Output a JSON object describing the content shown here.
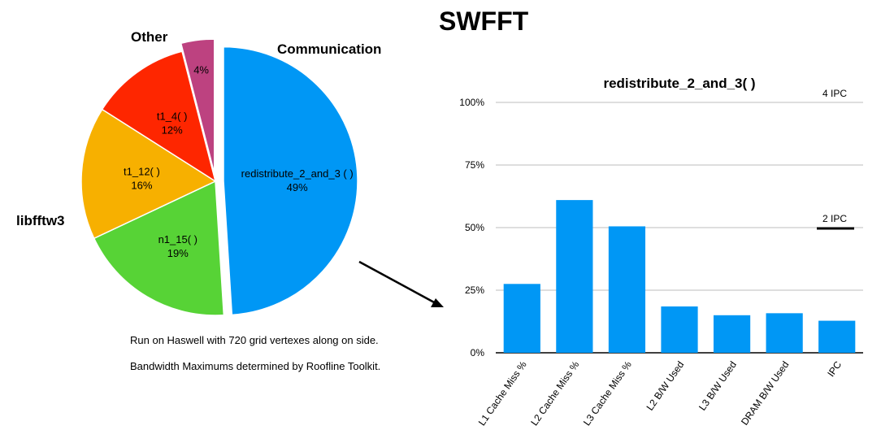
{
  "title": "SWFFT",
  "pie": {
    "group_labels": {
      "other": "Other",
      "communication": "Communication",
      "libfftw3": "libfftw3"
    },
    "notes": [
      "Run on Haswell with 720 grid vertexes along on side.",
      "Bandwidth Maximums determined by Roofline Toolkit."
    ]
  },
  "chart_data": [
    {
      "type": "pie",
      "slices": [
        {
          "label": "redistribute_2_and_3 ( )",
          "pct_label": "49%",
          "value": 49,
          "color": "#0097f5",
          "exploded": true
        },
        {
          "label": "n1_15( )",
          "pct_label": "19%",
          "value": 19,
          "color": "#57d336",
          "exploded": false
        },
        {
          "label": "t1_12( )",
          "pct_label": "16%",
          "value": 16,
          "color": "#f7b000",
          "exploded": false
        },
        {
          "label": "t1_4( )",
          "pct_label": "12%",
          "value": 12,
          "color": "#fe2600",
          "exploded": false
        },
        {
          "label": "",
          "pct_label": "4%",
          "value": 4,
          "color": "#bd4280",
          "exploded": true
        }
      ]
    },
    {
      "type": "bar",
      "title": "redistribute_2_and_3( )",
      "categories": [
        "L1 Cache Miss %",
        "L2 Cache Miss %",
        "L3 Cache Miss %",
        "L2 B/W Used",
        "L3 B/W Used",
        "DRAM B/W Used",
        "IPC"
      ],
      "values": [
        27.5,
        61,
        50.5,
        18.5,
        15,
        15.8,
        12.8
      ],
      "ylim": [
        0,
        100
      ],
      "yticks": [
        {
          "v": 0,
          "label": "0%"
        },
        {
          "v": 25,
          "label": "25%"
        },
        {
          "v": 50,
          "label": "50%"
        },
        {
          "v": 75,
          "label": "75%"
        },
        {
          "v": 100,
          "label": "100%"
        }
      ],
      "reference_labels": [
        {
          "label": "4 IPC",
          "v": 100
        },
        {
          "label": "2 IPC",
          "v": 50
        }
      ],
      "bar_color": "#0097f5",
      "grid": true
    }
  ]
}
